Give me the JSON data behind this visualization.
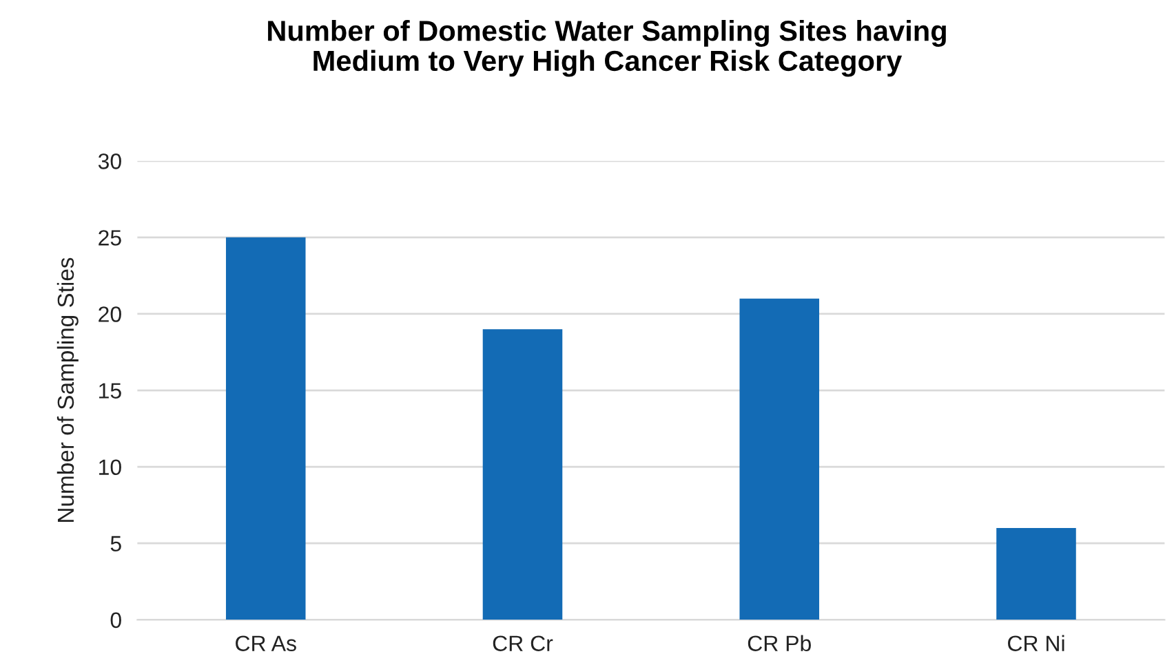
{
  "chart_data": {
    "type": "bar",
    "title": "Number of Domestic Water Sampling Sites having\nMedium to Very High Cancer Risk Category",
    "ylabel": "Number of Sampling Sties",
    "categories": [
      "CR As",
      "CR Cr",
      "CR Pb",
      "CR Ni"
    ],
    "values": [
      25,
      19,
      21,
      6
    ],
    "color": "#136bb5",
    "ylim": [
      0,
      30
    ],
    "yticks": [
      0,
      5,
      10,
      15,
      20,
      25,
      30
    ],
    "grid": "y"
  }
}
